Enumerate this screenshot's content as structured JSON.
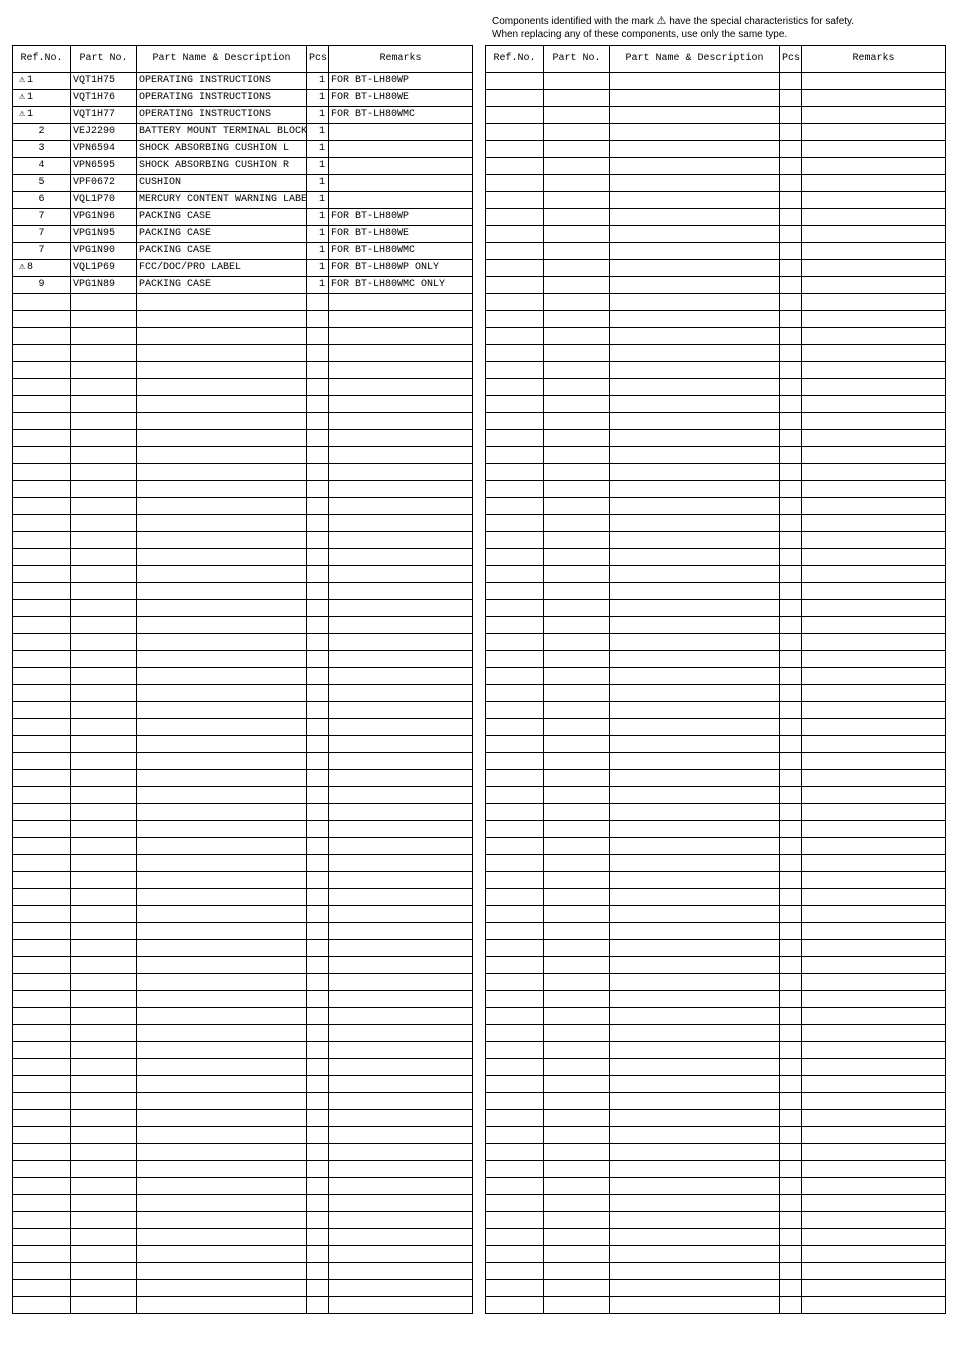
{
  "top_note": {
    "line1_prefix": "Components identified with the mark",
    "line1_suffix": "have the special characteristics for safety.",
    "line2": "When replacing any of these components, use only the same type.",
    "triangle": "⚠"
  },
  "headers": {
    "ref": "Ref.No.",
    "part": "Part No.",
    "name": "Part Name & Description",
    "pcs": "Pcs",
    "rem": "Remarks"
  },
  "total_rows": 73,
  "rows": [
    {
      "ref_flag": true,
      "ref": "1",
      "part": "VQT1H75",
      "name": "OPERATING INSTRUCTIONS",
      "pcs": "1",
      "rem": "FOR BT-LH80WP"
    },
    {
      "ref_flag": true,
      "ref": "1",
      "part": "VQT1H76",
      "name": "OPERATING INSTRUCTIONS",
      "pcs": "1",
      "rem": "FOR BT-LH80WE"
    },
    {
      "ref_flag": true,
      "ref": "1",
      "part": "VQT1H77",
      "name": "OPERATING INSTRUCTIONS",
      "pcs": "1",
      "rem": "FOR BT-LH80WMC"
    },
    {
      "ref_flag": false,
      "ref": "2",
      "part": "VEJ2290",
      "name": "BATTERY MOUNT TERMINAL BLOCK",
      "pcs": "1",
      "rem": ""
    },
    {
      "ref_flag": false,
      "ref": "3",
      "part": "VPN6594",
      "name": "SHOCK ABSORBING CUSHION L",
      "pcs": "1",
      "rem": ""
    },
    {
      "ref_flag": false,
      "ref": "4",
      "part": "VPN6595",
      "name": "SHOCK ABSORBING CUSHION R",
      "pcs": "1",
      "rem": ""
    },
    {
      "ref_flag": false,
      "ref": "5",
      "part": "VPF0672",
      "name": "CUSHION",
      "pcs": "1",
      "rem": ""
    },
    {
      "ref_flag": false,
      "ref": "6",
      "part": "VQL1P70",
      "name": "MERCURY CONTENT WARNING LABEL",
      "pcs": "1",
      "rem": ""
    },
    {
      "ref_flag": false,
      "ref": "7",
      "part": "VPG1N96",
      "name": "PACKING CASE",
      "pcs": "1",
      "rem": "FOR BT-LH80WP"
    },
    {
      "ref_flag": false,
      "ref": "7",
      "part": "VPG1N95",
      "name": "PACKING CASE",
      "pcs": "1",
      "rem": "FOR BT-LH80WE"
    },
    {
      "ref_flag": false,
      "ref": "7",
      "part": "VPG1N90",
      "name": "PACKING CASE",
      "pcs": "1",
      "rem": "FOR BT-LH80WMC"
    },
    {
      "ref_flag": true,
      "ref": "8",
      "part": "VQL1P69",
      "name": "FCC/DOC/PRO LABEL",
      "pcs": "1",
      "rem": "FOR BT-LH80WP ONLY"
    },
    {
      "ref_flag": false,
      "ref": "9",
      "part": "VPG1N89",
      "name": "PACKING CASE",
      "pcs": "1",
      "rem": "FOR BT-LH80WMC ONLY"
    }
  ],
  "triangle_glyph": "⚠",
  "colors": {
    "border": "#000000",
    "text": "#000000",
    "background": "#ffffff"
  }
}
